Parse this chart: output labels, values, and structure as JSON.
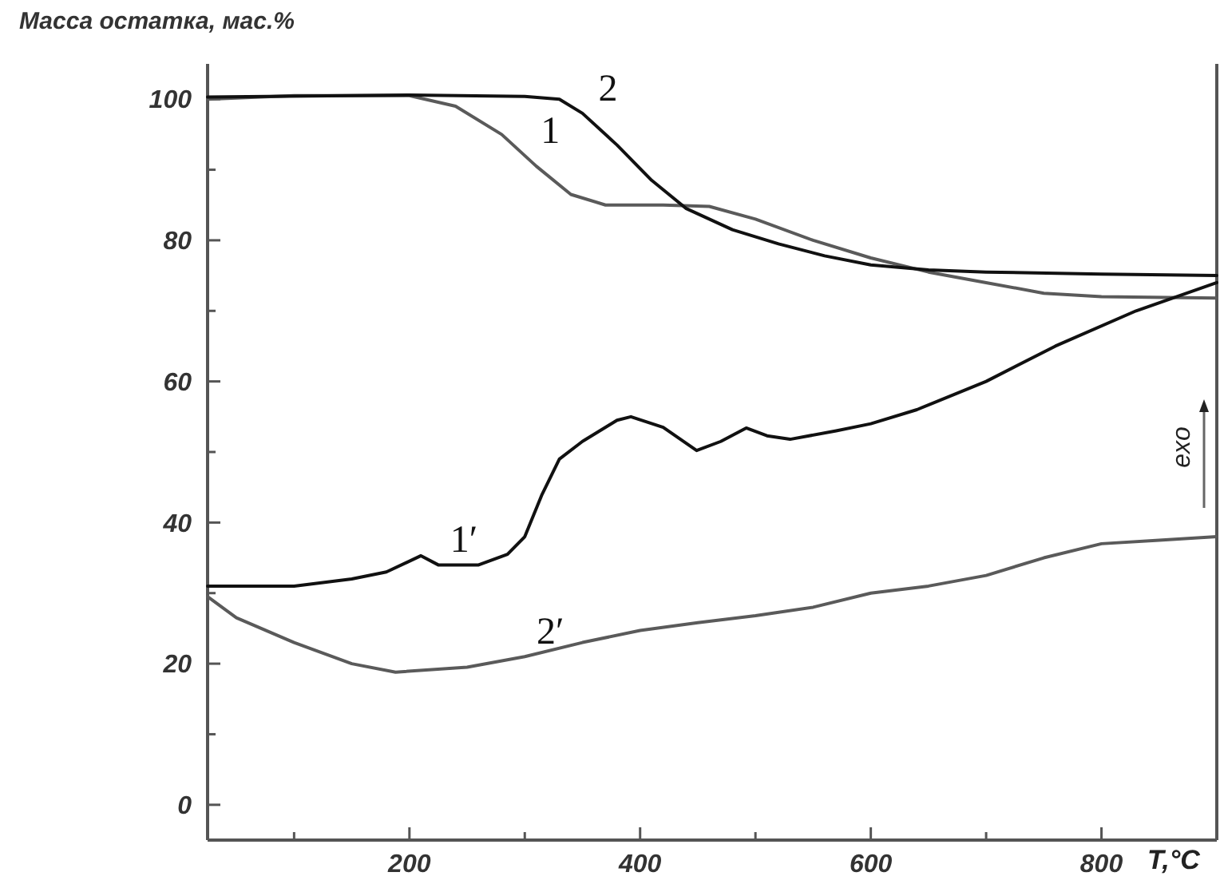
{
  "chart_data": {
    "type": "line",
    "ylabel": "Масса остатка, мас.%",
    "xlabel": "T,°C",
    "xlim": [
      25,
      900
    ],
    "ylim": [
      -5,
      105
    ],
    "xticks": [
      {
        "value": 100,
        "label": null
      },
      200,
      {
        "value": 300,
        "label": null
      },
      400,
      {
        "value": 500,
        "label": null
      },
      600,
      {
        "value": 700,
        "label": null
      },
      800
    ],
    "yticks": [
      0,
      {
        "value": 10,
        "label": null
      },
      20,
      {
        "value": 30,
        "label": null
      },
      40,
      {
        "value": 50,
        "label": null
      },
      60,
      {
        "value": 70,
        "label": null
      },
      80,
      {
        "value": 90,
        "label": null
      },
      100
    ],
    "grid": false,
    "marker": "none",
    "line_style": "solid",
    "series": [
      {
        "color": "#5a5a5a",
        "x": [
          25,
          100,
          200,
          240,
          280,
          310,
          340,
          370,
          420,
          460,
          500,
          550,
          600,
          650,
          700,
          750,
          800,
          900
        ],
        "values": [
          100,
          100.5,
          100.5,
          99,
          95,
          90.5,
          86.5,
          85,
          85,
          84.8,
          83,
          80,
          77.5,
          75.5,
          74,
          72.5,
          72,
          71.8
        ]
      },
      {
        "color": "#111111",
        "x": [
          25,
          200,
          300,
          330,
          350,
          380,
          410,
          440,
          480,
          520,
          560,
          600,
          650,
          700,
          800,
          900
        ],
        "values": [
          100.3,
          100.6,
          100.4,
          100,
          98,
          93.5,
          88.5,
          84.5,
          81.5,
          79.5,
          77.8,
          76.5,
          75.8,
          75.5,
          75.2,
          75
        ]
      },
      {
        "color": "#111111",
        "x": [
          25,
          100,
          150,
          180,
          210,
          225,
          260,
          285,
          300,
          315,
          330,
          350,
          380,
          392,
          420,
          449,
          470,
          492,
          510,
          530,
          570,
          600,
          640,
          700,
          760,
          830,
          900
        ],
        "values": [
          31,
          31,
          32,
          33,
          35.3,
          34,
          34,
          35.5,
          38,
          44,
          49,
          51.5,
          54.5,
          55,
          53.5,
          50.2,
          51.5,
          53.4,
          52.3,
          51.8,
          53,
          54,
          56,
          60,
          65,
          70,
          74
        ]
      },
      {
        "color": "#5a5a5a",
        "x": [
          25,
          50,
          100,
          150,
          188,
          250,
          300,
          350,
          400,
          450,
          500,
          550,
          600,
          650,
          700,
          750,
          800,
          850,
          900
        ],
        "values": [
          29.5,
          26.5,
          23,
          20,
          18.8,
          19.5,
          21,
          23,
          24.7,
          25.8,
          26.8,
          28,
          30,
          31,
          32.5,
          35,
          37,
          37.5,
          38
        ]
      }
    ],
    "annotations": [
      {
        "text": "1",
        "x": 300,
        "y": 92
      },
      {
        "text": "2",
        "x": 350,
        "y": 98
      },
      {
        "text": "1′",
        "x": 225,
        "y": 34
      },
      {
        "text": "2′",
        "x": 300,
        "y": 21
      },
      "exo"
    ]
  }
}
